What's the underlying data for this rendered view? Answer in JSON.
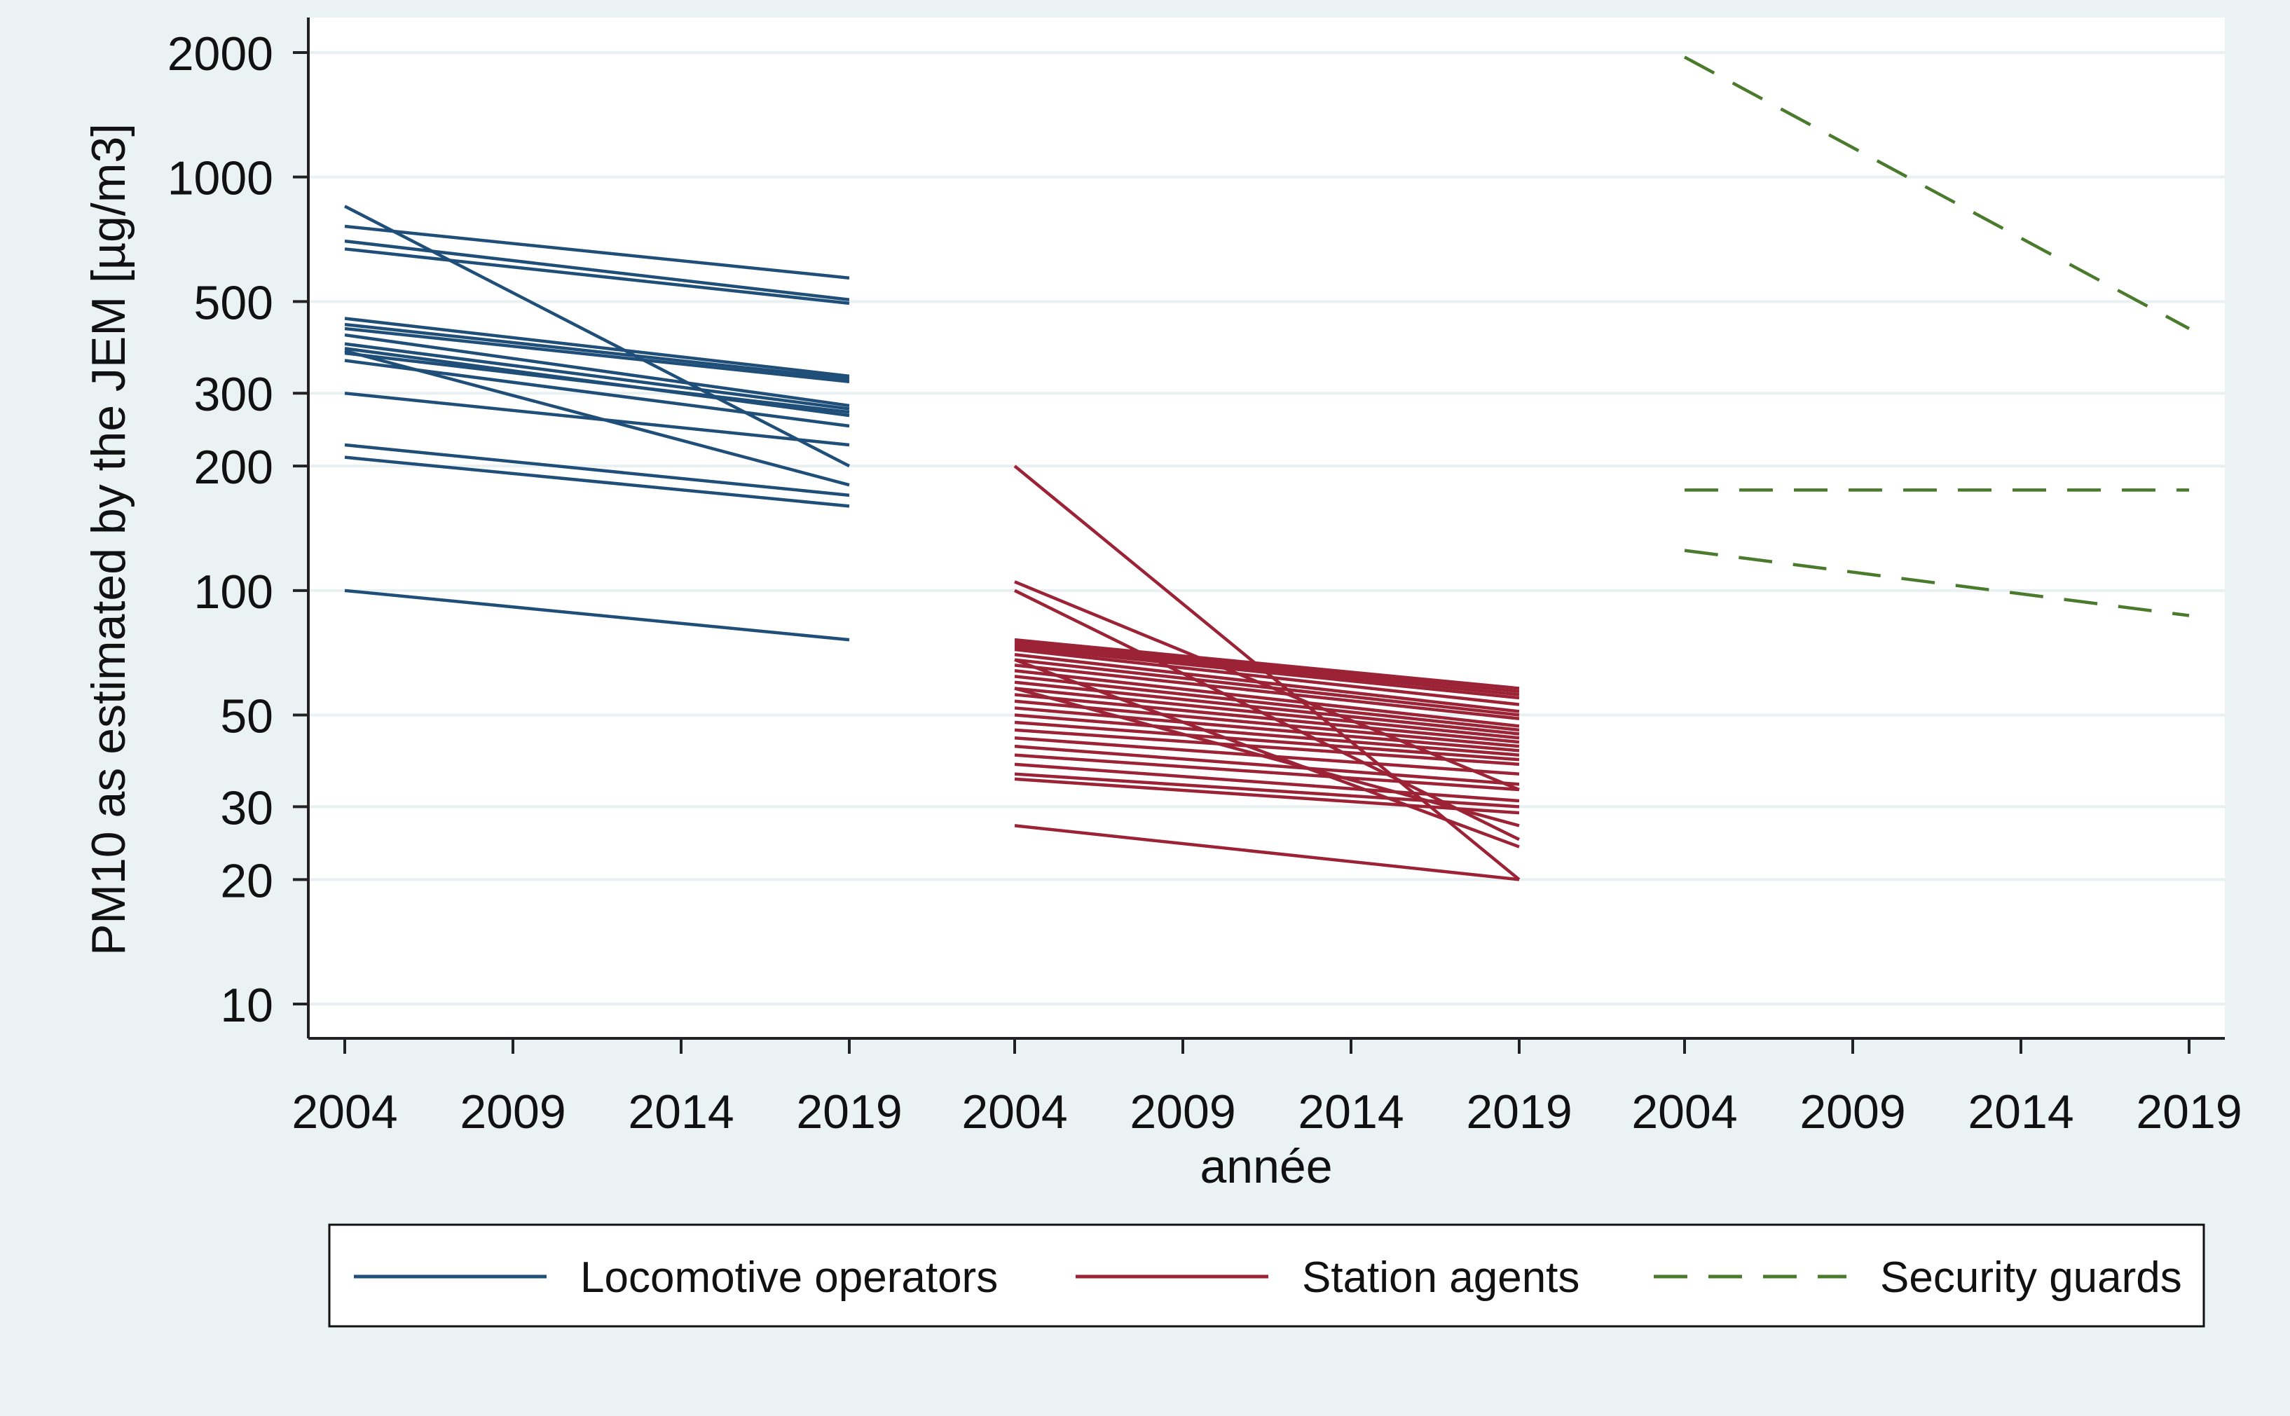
{
  "colors": {
    "outer_background": "#eaf2f3",
    "plot_background": "#ffffff",
    "grid": "#e9f0f2",
    "axis": "#222222",
    "legend_border": "#111111"
  },
  "chart_data": {
    "type": "line",
    "title": "",
    "xlabel": "année",
    "ylabel": "PM10 as estimated by the JEM [µg/m3]",
    "yscale": "log",
    "ylim": [
      8,
      2300
    ],
    "yticks": [
      10,
      20,
      30,
      50,
      100,
      200,
      300,
      500,
      1000,
      2000
    ],
    "ytick_labels": [
      "10",
      "20",
      "30",
      "50",
      "100",
      "200",
      "300",
      "500",
      "1000",
      "2000"
    ],
    "xticks": [
      2004,
      2009,
      2014,
      2019
    ],
    "xtick_labels": [
      "2004",
      "2009",
      "2014",
      "2019"
    ],
    "grid": true,
    "legend_position": "bottom",
    "panels": [
      {
        "name": "Locomotive operators",
        "color": "#1f4e79",
        "dash": "solid",
        "lines": [
          [
            850,
            200
          ],
          [
            760,
            570
          ],
          [
            700,
            505
          ],
          [
            670,
            495
          ],
          [
            455,
            330
          ],
          [
            440,
            325
          ],
          [
            430,
            320
          ],
          [
            415,
            280
          ],
          [
            395,
            275
          ],
          [
            385,
            265
          ],
          [
            375,
            270
          ],
          [
            360,
            250
          ],
          [
            380,
            180
          ],
          [
            300,
            225
          ],
          [
            225,
            170
          ],
          [
            210,
            160
          ],
          [
            100,
            76
          ]
        ]
      },
      {
        "name": "Station agents",
        "color": "#9b2335",
        "dash": "solid",
        "lines": [
          [
            200,
            20
          ],
          [
            105,
            33
          ],
          [
            100,
            25
          ],
          [
            76,
            58
          ],
          [
            75,
            57
          ],
          [
            74,
            56
          ],
          [
            73,
            55
          ],
          [
            72,
            53
          ],
          [
            70,
            51
          ],
          [
            68,
            50
          ],
          [
            66,
            49
          ],
          [
            64,
            47
          ],
          [
            62,
            46
          ],
          [
            60,
            45
          ],
          [
            58,
            44
          ],
          [
            56,
            43
          ],
          [
            54,
            42
          ],
          [
            52,
            41
          ],
          [
            50,
            40
          ],
          [
            48,
            39
          ],
          [
            46,
            38
          ],
          [
            44,
            36
          ],
          [
            42,
            34
          ],
          [
            40,
            33
          ],
          [
            38,
            31
          ],
          [
            36,
            30
          ],
          [
            35,
            29
          ],
          [
            58,
            27
          ],
          [
            68,
            24
          ],
          [
            27,
            20
          ]
        ]
      },
      {
        "name": "Security guards",
        "color": "#4a7a2c",
        "dash": "dashed",
        "lines": [
          [
            1950,
            430
          ],
          [
            175,
            175
          ],
          [
            125,
            87
          ]
        ]
      }
    ]
  },
  "legend": [
    {
      "label": "Locomotive operators",
      "color": "#1f4e79",
      "dash": "solid"
    },
    {
      "label": "Station agents",
      "color": "#9b2335",
      "dash": "solid"
    },
    {
      "label": "Security guards",
      "color": "#4a7a2c",
      "dash": "dashed"
    }
  ]
}
